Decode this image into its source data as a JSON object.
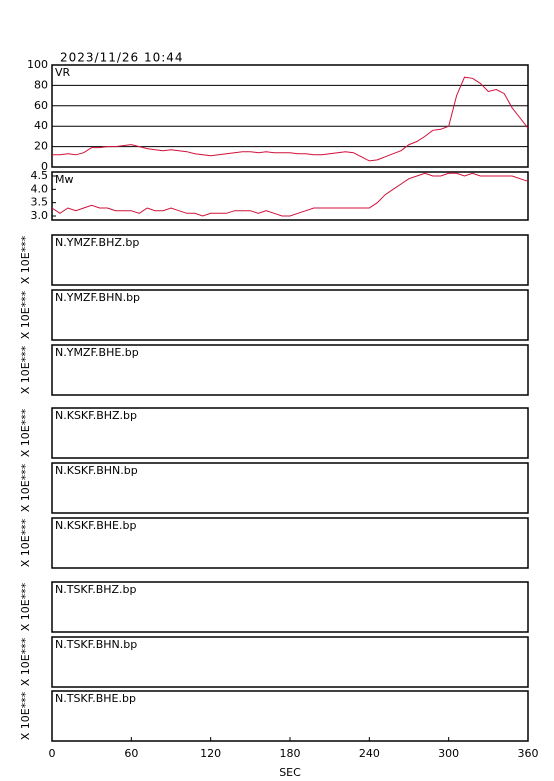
{
  "header": {
    "timestamp": "2023/11/26  10:44"
  },
  "chart_data": [
    {
      "type": "line",
      "title": "VR",
      "xlim": [
        0,
        360
      ],
      "ylim": [
        0,
        100
      ],
      "yticks": [
        0,
        20,
        40,
        60,
        80,
        100
      ],
      "grid": true,
      "x": [
        0,
        6,
        12,
        18,
        24,
        30,
        36,
        42,
        48,
        54,
        60,
        66,
        72,
        78,
        84,
        90,
        96,
        102,
        108,
        114,
        120,
        126,
        132,
        138,
        144,
        150,
        156,
        162,
        168,
        174,
        180,
        186,
        192,
        198,
        204,
        210,
        216,
        222,
        228,
        234,
        240,
        246,
        252,
        258,
        264,
        270,
        276,
        282,
        288,
        294,
        300,
        306,
        312,
        318,
        324,
        330,
        336,
        342,
        348,
        354,
        360
      ],
      "series": [
        {
          "color": "#d0103a",
          "values": [
            12,
            12,
            13,
            12,
            14,
            19,
            19,
            20,
            20,
            21,
            22,
            20,
            18,
            17,
            16,
            17,
            16,
            15,
            13,
            12,
            11,
            12,
            13,
            14,
            15,
            15,
            14,
            15,
            14,
            14,
            14,
            13,
            13,
            12,
            12,
            13,
            14,
            15,
            14,
            10,
            6,
            7,
            10,
            13,
            16,
            22,
            25,
            30,
            36,
            37,
            40,
            70,
            88,
            87,
            82,
            74,
            76,
            72,
            58,
            48,
            38
          ]
        }
      ]
    },
    {
      "type": "line",
      "title": "Mw",
      "xlim": [
        0,
        360
      ],
      "ylim": [
        2.85,
        4.65
      ],
      "yticks": [
        {
          "value": 3,
          "label": "3.0"
        },
        3.5,
        {
          "value": 4,
          "label": "4.0"
        },
        4.5
      ],
      "grid": false,
      "x": [
        0,
        6,
        12,
        18,
        24,
        30,
        36,
        42,
        48,
        54,
        60,
        66,
        72,
        78,
        84,
        90,
        96,
        102,
        108,
        114,
        120,
        126,
        132,
        138,
        144,
        150,
        156,
        162,
        168,
        174,
        180,
        186,
        192,
        198,
        204,
        210,
        216,
        222,
        228,
        234,
        240,
        246,
        252,
        258,
        264,
        270,
        276,
        282,
        288,
        294,
        300,
        306,
        312,
        318,
        324,
        330,
        336,
        342,
        348,
        354,
        360
      ],
      "series": [
        {
          "color": "#d0103a",
          "values": [
            3.3,
            3.1,
            3.3,
            3.2,
            3.3,
            3.4,
            3.3,
            3.3,
            3.2,
            3.2,
            3.2,
            3.1,
            3.3,
            3.2,
            3.2,
            3.3,
            3.2,
            3.1,
            3.1,
            3.0,
            3.1,
            3.1,
            3.1,
            3.2,
            3.2,
            3.2,
            3.1,
            3.2,
            3.1,
            3.0,
            3.0,
            3.1,
            3.2,
            3.3,
            3.3,
            3.3,
            3.3,
            3.3,
            3.3,
            3.3,
            3.3,
            3.5,
            3.8,
            4.0,
            4.2,
            4.4,
            4.5,
            4.6,
            4.5,
            4.5,
            4.6,
            4.6,
            4.5,
            4.6,
            4.5,
            4.5,
            4.5,
            4.5,
            4.5,
            4.4,
            4.3
          ]
        }
      ]
    },
    {
      "type": "trace",
      "title": "N.YMZF.BHZ.bp",
      "ylabel": "X 10E***"
    },
    {
      "type": "trace",
      "title": "N.YMZF.BHN.bp",
      "ylabel": "X 10E***"
    },
    {
      "type": "trace",
      "title": "N.YMZF.BHE.bp",
      "ylabel": "X 10E***"
    },
    {
      "type": "trace",
      "title": "N.KSKF.BHZ.bp",
      "ylabel": "X 10E***"
    },
    {
      "type": "trace",
      "title": "N.KSKF.BHN.bp",
      "ylabel": "X 10E***"
    },
    {
      "type": "trace",
      "title": "N.KSKF.BHE.bp",
      "ylabel": "X 10E***"
    },
    {
      "type": "trace",
      "title": "N.TSKF.BHZ.bp",
      "ylabel": "X 10E***"
    },
    {
      "type": "trace",
      "title": "N.TSKF.BHN.bp",
      "ylabel": "X 10E***"
    },
    {
      "type": "trace",
      "title": "N.TSKF.BHE.bp",
      "ylabel": "X 10E***",
      "xlim": [
        0,
        360
      ],
      "xticks": [
        0,
        60,
        120,
        180,
        240,
        300,
        360
      ],
      "xlabel": "SEC"
    }
  ]
}
